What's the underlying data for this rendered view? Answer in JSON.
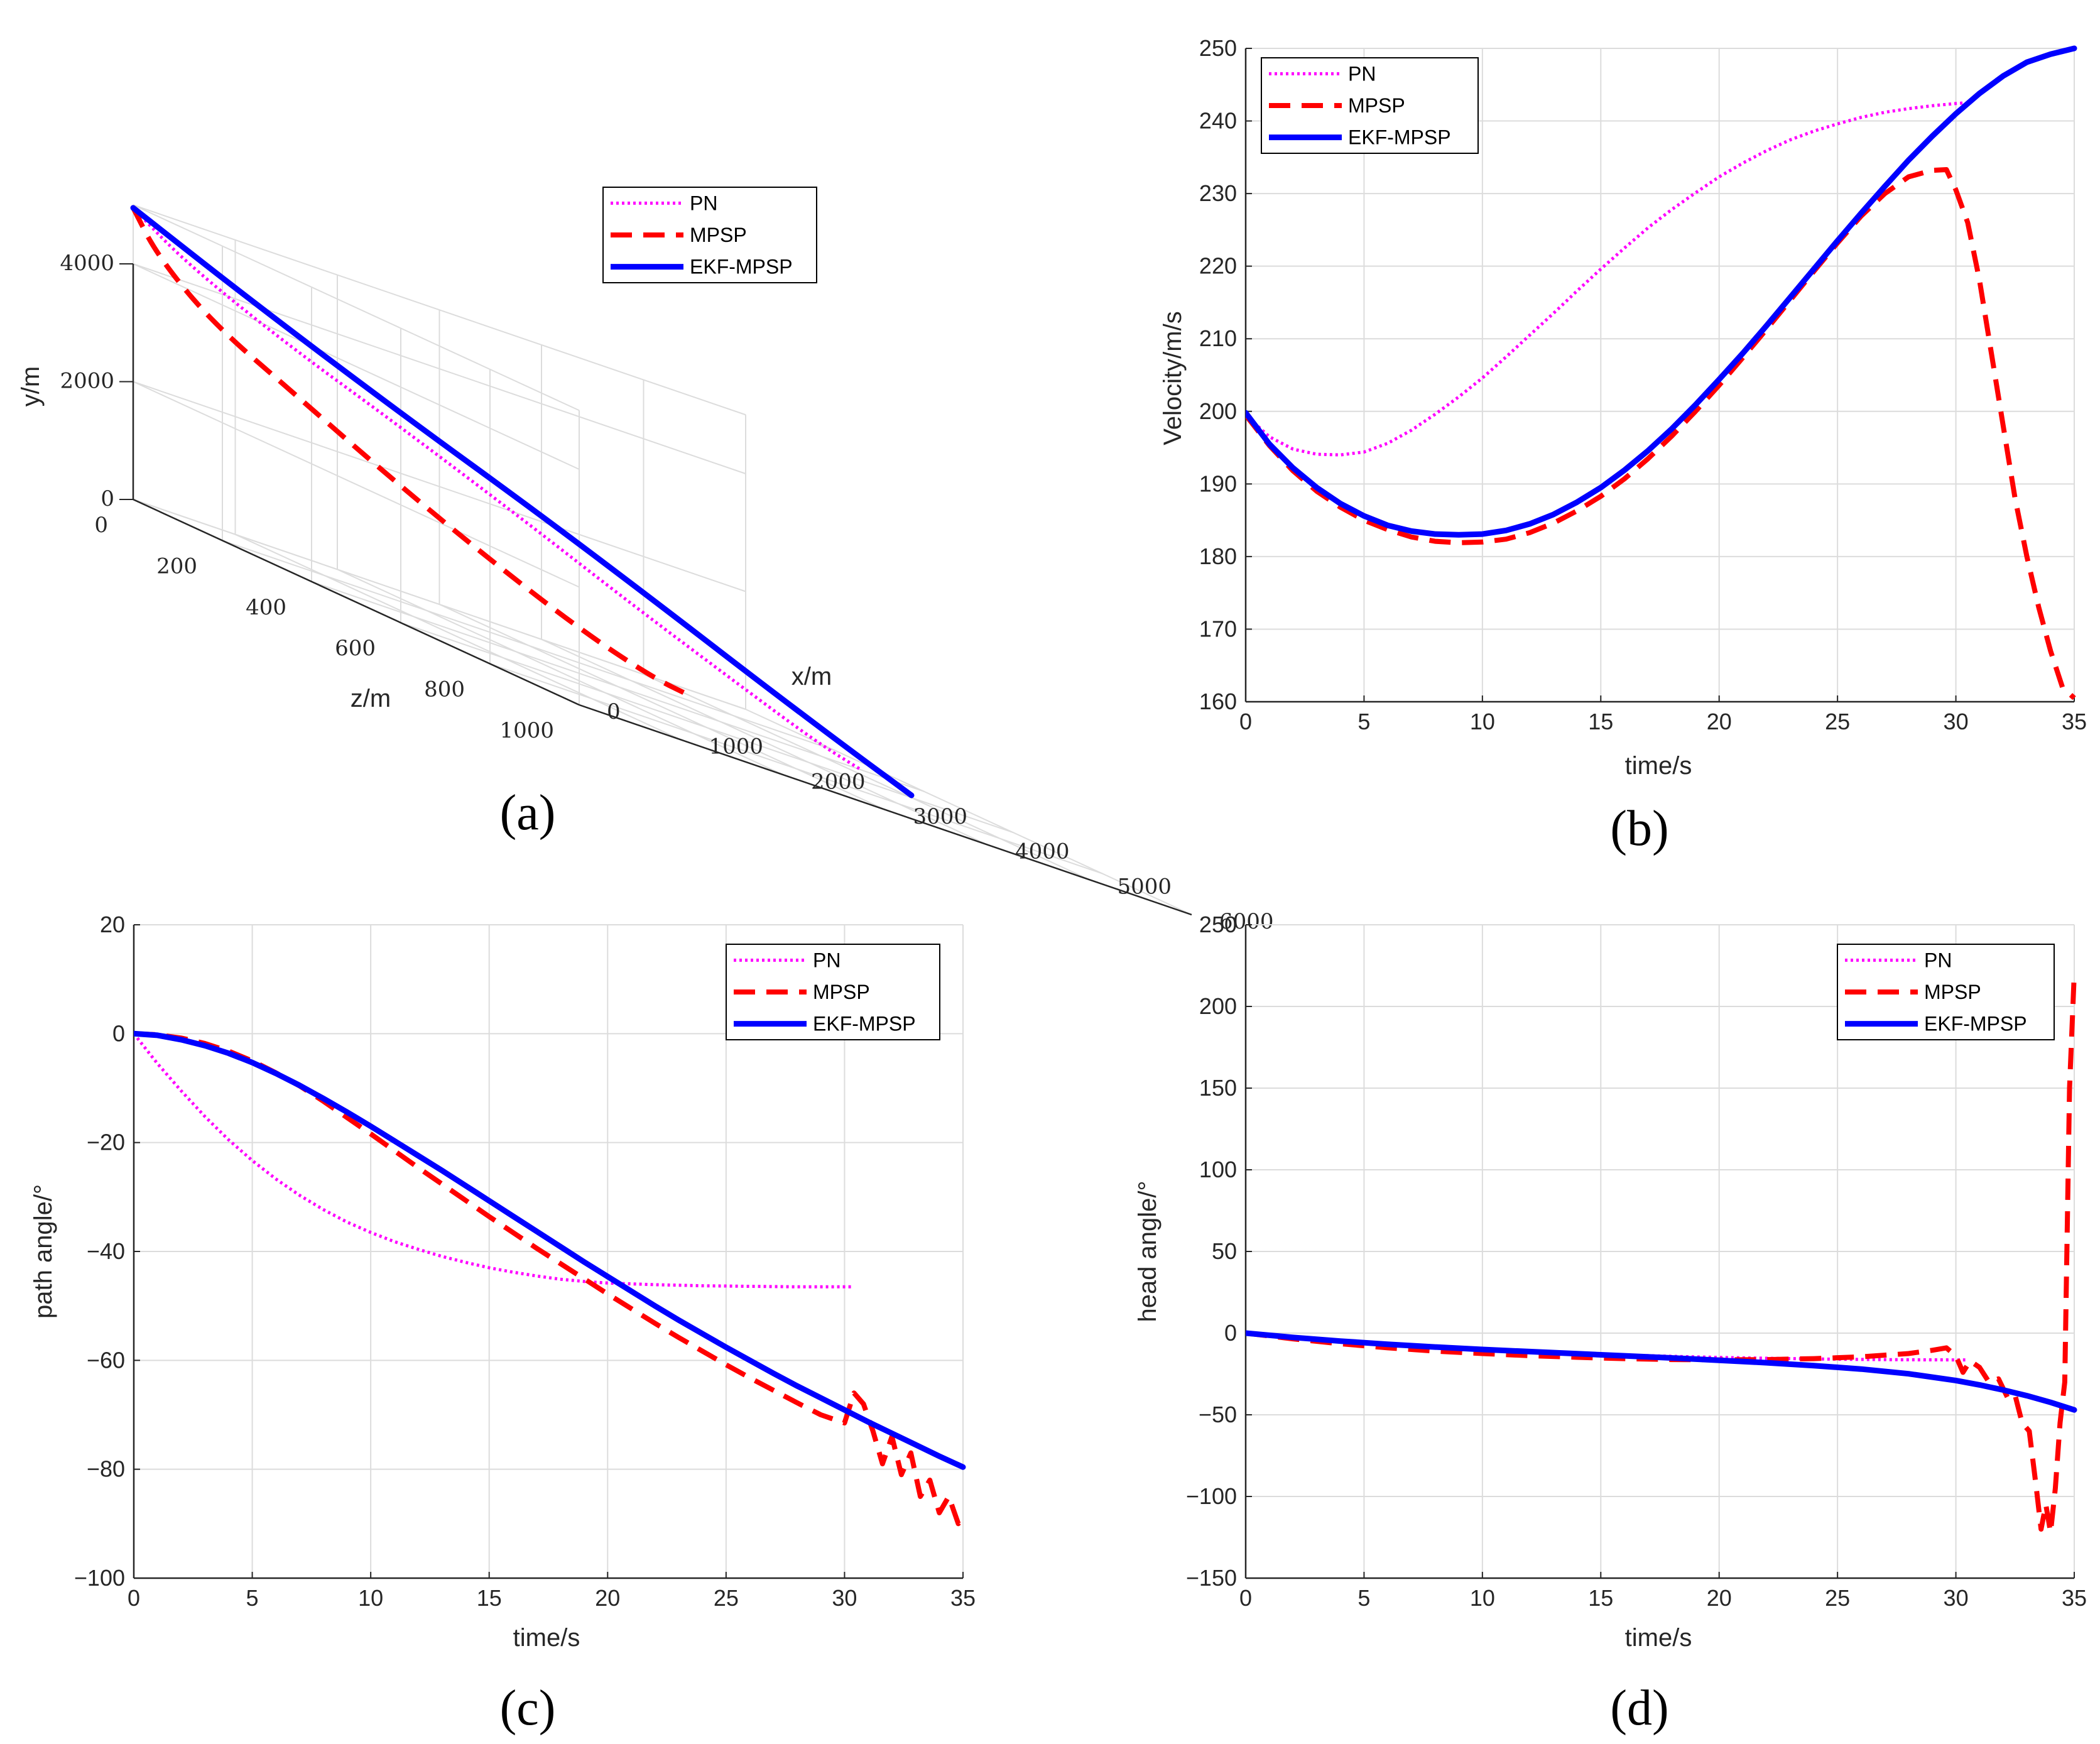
{
  "colors": {
    "pn": "#ff00ff",
    "mpsp": "#ff0000",
    "ekf": "#0000ff"
  },
  "legend_labels": [
    "PN",
    "MPSP",
    "EKF-MPSP"
  ],
  "captions": [
    "(a)",
    "(b)",
    "(c)",
    "(d)"
  ],
  "chart_data": [
    {
      "panel": "a",
      "type": "line",
      "projection": "3d",
      "xlabel": "x/m",
      "ylabel": "y/m",
      "zlabel": "z/m",
      "x_ticks": [
        "0",
        "1000",
        "2000",
        "3000",
        "4000",
        "5000",
        "6000"
      ],
      "y_ticks": [
        "0",
        "2000",
        "4000"
      ],
      "z_ticks": [
        "0",
        "200",
        "400",
        "600",
        "800",
        "1000"
      ],
      "xlim": [
        0,
        6000
      ],
      "ylim": [
        0,
        5000
      ],
      "zlim": [
        0,
        1000
      ],
      "legend": "inside-right",
      "series": [
        {
          "name": "PN",
          "style": "dotted",
          "points": [
            [
              0,
              4950,
              0
            ],
            [
              200,
              4400,
              70
            ],
            [
              800,
              3700,
              150
            ],
            [
              1600,
              3000,
              230
            ],
            [
              2500,
              2200,
              300
            ],
            [
              3400,
              1400,
              350
            ],
            [
              4300,
              700,
              380
            ],
            [
              5000,
              200,
              390
            ],
            [
              5400,
              0,
              395
            ]
          ]
        },
        {
          "name": "MPSP",
          "style": "dashed",
          "points": [
            [
              0,
              4950,
              0
            ],
            [
              150,
              4300,
              20
            ],
            [
              600,
              3500,
              40
            ],
            [
              1300,
              2800,
              60
            ],
            [
              2100,
              2000,
              80
            ],
            [
              3000,
              1200,
              95
            ],
            [
              3900,
              500,
              105
            ],
            [
              4600,
              100,
              110
            ],
            [
              5000,
              0,
              112
            ]
          ]
        },
        {
          "name": "EKF-MPSP",
          "style": "solid",
          "points": [
            [
              0,
              4950,
              0
            ],
            [
              400,
              4200,
              180
            ],
            [
              1200,
              3300,
              330
            ],
            [
              2100,
              2500,
              430
            ],
            [
              3000,
              1700,
              500
            ],
            [
              3900,
              950,
              535
            ],
            [
              4700,
              350,
              550
            ],
            [
              5200,
              0,
              555
            ]
          ]
        }
      ]
    },
    {
      "panel": "b",
      "type": "line",
      "xlabel": "time/s",
      "ylabel": "Velocity/m/s",
      "xlim": [
        0,
        35
      ],
      "ylim": [
        160,
        250
      ],
      "x_ticks": [
        0,
        5,
        10,
        15,
        20,
        25,
        30,
        35
      ],
      "y_ticks": [
        160,
        170,
        180,
        190,
        200,
        210,
        220,
        230,
        240,
        250
      ],
      "grid": true,
      "legend": "top-left",
      "series": [
        {
          "name": "PN",
          "style": "dotted",
          "x": [
            0,
            1,
            2,
            3,
            4,
            5,
            6,
            7,
            8,
            9,
            10,
            11,
            12,
            13,
            14,
            15,
            16,
            17,
            18,
            19,
            20,
            21,
            22,
            23,
            24,
            25,
            26,
            27,
            28,
            29,
            30,
            30.4
          ],
          "values": [
            199.5,
            196.5,
            194.8,
            194.1,
            194.0,
            194.4,
            195.6,
            197.4,
            199.6,
            202,
            204.6,
            207.5,
            210.5,
            213.5,
            216.6,
            219.6,
            222.5,
            225.3,
            227.8,
            230.1,
            232.3,
            234.2,
            235.9,
            237.4,
            238.6,
            239.6,
            240.5,
            241.2,
            241.7,
            242.1,
            242.4,
            242.5
          ]
        },
        {
          "name": "MPSP",
          "style": "dashed",
          "x": [
            0,
            1,
            2,
            3,
            4,
            5,
            6,
            7,
            8,
            9,
            10,
            11,
            12,
            13,
            14,
            15,
            16,
            17,
            18,
            19,
            20,
            21,
            22,
            23,
            24,
            25,
            26,
            27,
            28,
            29,
            29.6,
            30,
            30.5,
            31,
            31.5,
            32,
            32.5,
            33,
            33.5,
            34,
            34.5,
            35
          ],
          "values": [
            199.5,
            195.3,
            191.8,
            189,
            186.8,
            185,
            183.7,
            182.7,
            182.1,
            181.9,
            182,
            182.4,
            183.3,
            184.6,
            186.3,
            188.3,
            190.7,
            193.5,
            196.6,
            200,
            203.6,
            207.4,
            211.3,
            215.3,
            219.3,
            223.2,
            226.9,
            230,
            232.3,
            233.2,
            233.3,
            230.5,
            226,
            218,
            208,
            198,
            188,
            180,
            173,
            167,
            162,
            160.5
          ]
        },
        {
          "name": "EKF-MPSP",
          "style": "solid",
          "x": [
            0,
            1,
            2,
            3,
            4,
            5,
            6,
            7,
            8,
            9,
            10,
            11,
            12,
            13,
            14,
            15,
            16,
            17,
            18,
            19,
            20,
            21,
            22,
            23,
            24,
            25,
            26,
            27,
            28,
            29,
            30,
            31,
            32,
            33,
            34,
            35
          ],
          "values": [
            199.8,
            195.5,
            192.2,
            189.5,
            187.3,
            185.6,
            184.3,
            183.5,
            183.1,
            183,
            183.1,
            183.6,
            184.5,
            185.8,
            187.5,
            189.5,
            191.9,
            194.6,
            197.6,
            200.9,
            204.4,
            208,
            211.8,
            215.7,
            219.6,
            223.5,
            227.3,
            231,
            234.6,
            237.9,
            241,
            243.8,
            246.2,
            248.1,
            249.2,
            250
          ]
        }
      ]
    },
    {
      "panel": "c",
      "type": "line",
      "xlabel": "time/s",
      "ylabel": "path angle/°",
      "xlim": [
        0,
        35
      ],
      "ylim": [
        -100,
        20
      ],
      "x_ticks": [
        0,
        5,
        10,
        15,
        20,
        25,
        30,
        35
      ],
      "y_ticks": [
        -100,
        -80,
        -60,
        -40,
        -20,
        0,
        20
      ],
      "y_tick_labels": [
        "−100",
        "−80",
        "−60",
        "−40",
        "−20",
        "0",
        "20"
      ],
      "grid": true,
      "legend": "top-right",
      "series": [
        {
          "name": "PN",
          "style": "dotted",
          "x": [
            0,
            1,
            2,
            3,
            4,
            5,
            6,
            7,
            8,
            9,
            10,
            11,
            12,
            13,
            14,
            15,
            16,
            17,
            18,
            19,
            20,
            22,
            24,
            26,
            28,
            30,
            30.4
          ],
          "values": [
            0,
            -5.5,
            -10.5,
            -15.2,
            -19.5,
            -23.3,
            -26.7,
            -29.7,
            -32.3,
            -34.6,
            -36.5,
            -38.2,
            -39.6,
            -40.9,
            -42,
            -43,
            -43.8,
            -44.5,
            -45.1,
            -45.5,
            -45.8,
            -46.1,
            -46.3,
            -46.4,
            -46.5,
            -46.5,
            -46.5
          ]
        },
        {
          "name": "MPSP",
          "style": "dashed",
          "x": [
            0,
            1,
            2,
            3,
            4,
            5,
            6,
            7,
            8,
            9,
            10,
            11,
            12,
            13,
            14,
            15,
            16,
            17,
            18,
            19,
            20,
            21,
            22,
            23,
            24,
            25,
            26,
            27,
            28,
            29,
            30,
            30.4,
            30.8,
            31.2,
            31.6,
            32,
            32.4,
            32.8,
            33.2,
            33.6,
            34,
            34.4,
            34.8,
            35
          ],
          "values": [
            0,
            -0.2,
            -0.8,
            -1.8,
            -3.2,
            -5,
            -7.2,
            -9.6,
            -12.4,
            -15.4,
            -18.4,
            -21.5,
            -24.6,
            -27.6,
            -30.6,
            -33.6,
            -36.5,
            -39.4,
            -42.2,
            -45,
            -47.8,
            -50.5,
            -53.2,
            -55.8,
            -58.3,
            -60.8,
            -63.2,
            -65.5,
            -67.8,
            -70,
            -71.5,
            -66,
            -68,
            -73,
            -79,
            -74,
            -81,
            -77,
            -85,
            -82,
            -88,
            -85,
            -90,
            -89
          ]
        },
        {
          "name": "EKF-MPSP",
          "style": "solid",
          "x": [
            0,
            1,
            2,
            3,
            4,
            5,
            6,
            7,
            8,
            9,
            10,
            11,
            12,
            13,
            14,
            15,
            16,
            17,
            18,
            19,
            20,
            21,
            22,
            23,
            24,
            25,
            26,
            27,
            28,
            29,
            30,
            31,
            32,
            33,
            34,
            35
          ],
          "values": [
            0,
            -0.3,
            -1.1,
            -2.2,
            -3.6,
            -5.3,
            -7.3,
            -9.5,
            -11.9,
            -14.4,
            -17,
            -19.7,
            -22.4,
            -25.1,
            -27.9,
            -30.7,
            -33.5,
            -36.3,
            -39.1,
            -41.9,
            -44.6,
            -47.3,
            -50,
            -52.6,
            -55.1,
            -57.6,
            -60,
            -62.4,
            -64.7,
            -66.9,
            -69.1,
            -71.3,
            -73.4,
            -75.5,
            -77.6,
            -79.6
          ]
        }
      ]
    },
    {
      "panel": "d",
      "type": "line",
      "xlabel": "time/s",
      "ylabel": "head angle/°",
      "xlim": [
        0,
        35
      ],
      "ylim": [
        -150,
        250
      ],
      "x_ticks": [
        0,
        5,
        10,
        15,
        20,
        25,
        30,
        35
      ],
      "y_ticks": [
        -150,
        -100,
        -50,
        0,
        50,
        100,
        150,
        200,
        250
      ],
      "y_tick_labels": [
        "−150",
        "−100",
        "−50",
        "0",
        "50",
        "100",
        "150",
        "200",
        "250"
      ],
      "grid": true,
      "legend": "top-right",
      "series": [
        {
          "name": "PN",
          "style": "dotted",
          "x": [
            0,
            2,
            4,
            6,
            8,
            10,
            12,
            14,
            16,
            18,
            20,
            22,
            24,
            26,
            28,
            30,
            30.4
          ],
          "values": [
            0,
            -2.5,
            -4.8,
            -6.8,
            -8.5,
            -10,
            -11.3,
            -12.4,
            -13.4,
            -14.2,
            -14.9,
            -15.4,
            -15.8,
            -16.1,
            -16.3,
            -16.4,
            -16.4
          ]
        },
        {
          "name": "MPSP",
          "style": "dashed",
          "x": [
            0,
            2,
            4,
            6,
            8,
            10,
            12,
            14,
            16,
            18,
            20,
            22,
            24,
            26,
            28,
            29,
            29.6,
            30,
            30.3,
            30.6,
            31,
            31.4,
            31.8,
            32.2,
            32.5,
            32.8,
            33.1,
            33.4,
            33.6,
            33.8,
            34,
            34.2,
            34.4,
            34.6,
            34.8,
            35
          ],
          "values": [
            0,
            -3.5,
            -6.5,
            -9,
            -11,
            -12.5,
            -13.8,
            -14.8,
            -15.6,
            -16.2,
            -16.4,
            -16.2,
            -15.6,
            -14.5,
            -12.5,
            -10.5,
            -9,
            -14,
            -24,
            -17,
            -21,
            -30,
            -28,
            -40,
            -38,
            -55,
            -60,
            -95,
            -120,
            -105,
            -122,
            -95,
            -55,
            -30,
            150,
            220
          ]
        },
        {
          "name": "EKF-MPSP",
          "style": "solid",
          "x": [
            0,
            2,
            4,
            6,
            8,
            10,
            12,
            14,
            16,
            18,
            20,
            22,
            24,
            26,
            28,
            30,
            31,
            32,
            33,
            34,
            35
          ],
          "values": [
            0,
            -2.6,
            -4.9,
            -6.8,
            -8.5,
            -10,
            -11.3,
            -12.6,
            -13.9,
            -15.2,
            -16.6,
            -18.1,
            -19.9,
            -22,
            -24.9,
            -29,
            -31.7,
            -34.8,
            -38.3,
            -42.4,
            -47
          ]
        }
      ]
    }
  ]
}
